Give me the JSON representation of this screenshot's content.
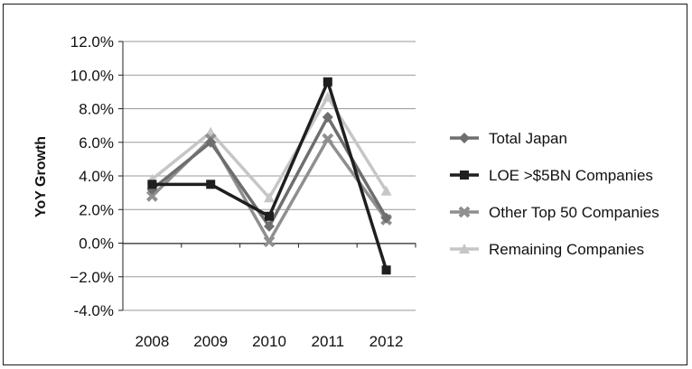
{
  "chart_data": {
    "type": "line",
    "title": "",
    "xlabel": "",
    "ylabel": "YoY Growth",
    "categories": [
      "2008",
      "2009",
      "2010",
      "2011",
      "2012"
    ],
    "ylim": [
      -4.0,
      12.0
    ],
    "yticks": [
      12.0,
      10.0,
      8.0,
      6.0,
      4.0,
      2.0,
      0.0,
      -2.0,
      -4.0
    ],
    "ytick_labels": [
      "12.0%",
      "10.0%",
      "8.0%",
      "6.0%",
      "4.0%",
      "2.0%",
      "0.0%",
      "−2.0%",
      "-4.0%"
    ],
    "grid": "horizontal",
    "legend": "right",
    "series": [
      {
        "name": "Total Japan",
        "values": [
          3.2,
          6.0,
          1.0,
          7.5,
          1.5
        ],
        "color": "#6e6e6e",
        "marker": "diamond"
      },
      {
        "name": "LOE >$5BN Companies",
        "values": [
          3.5,
          3.5,
          1.6,
          9.6,
          -1.6
        ],
        "color": "#1f1f1f",
        "marker": "square"
      },
      {
        "name": "Other Top 50 Companies",
        "values": [
          2.8,
          6.2,
          0.1,
          6.2,
          1.4
        ],
        "color": "#8f8f8f",
        "marker": "x"
      },
      {
        "name": "Remaining Companies",
        "values": [
          3.8,
          6.6,
          2.7,
          8.7,
          3.1
        ],
        "color": "#c6c6c6",
        "marker": "triangle"
      }
    ]
  }
}
